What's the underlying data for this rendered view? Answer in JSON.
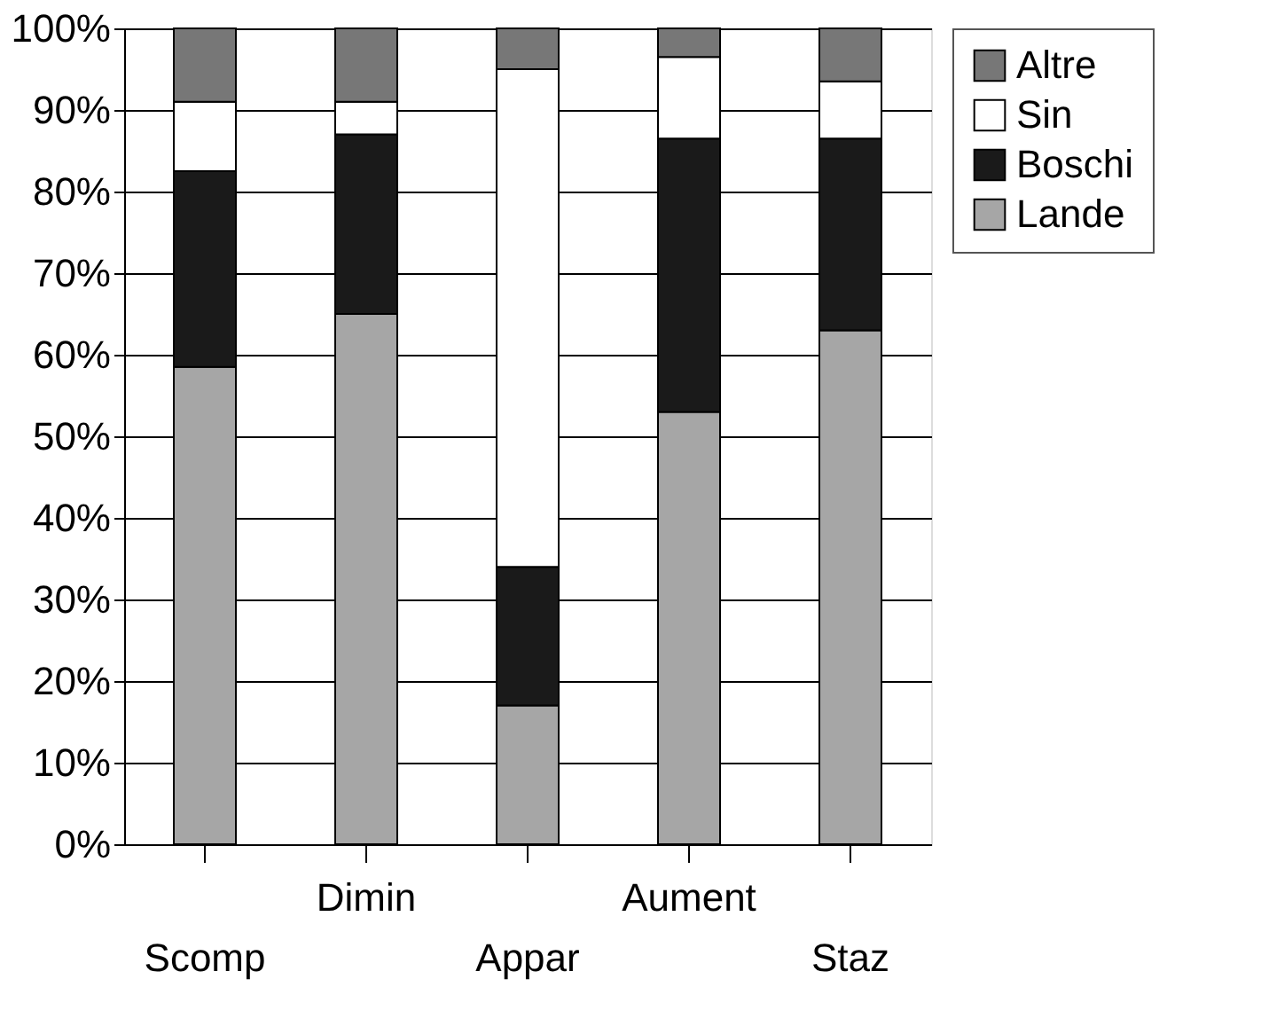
{
  "chart_data": {
    "type": "bar",
    "stacked": true,
    "categories": [
      "Scomp",
      "Dimin",
      "Appar",
      "Aument",
      "Staz"
    ],
    "series": [
      {
        "name": "Lande",
        "color": "#a6a6a6",
        "values": [
          58.5,
          65,
          17,
          53,
          63
        ]
      },
      {
        "name": "Boschi",
        "color": "#1a1a1a",
        "values": [
          24,
          22,
          17,
          33.5,
          23.5
        ]
      },
      {
        "name": "Sin",
        "color": "#ffffff",
        "values": [
          8.5,
          4,
          61,
          10,
          7
        ]
      },
      {
        "name": "Altre",
        "color": "#777777",
        "values": [
          9,
          9,
          5,
          3.5,
          6.5
        ]
      }
    ],
    "ylim": [
      0,
      100
    ],
    "yticks": [
      {
        "value": 0,
        "label": "0%"
      },
      {
        "value": 10,
        "label": "10%"
      },
      {
        "value": 20,
        "label": "20%"
      },
      {
        "value": 30,
        "label": "30%"
      },
      {
        "value": 40,
        "label": "40%"
      },
      {
        "value": 50,
        "label": "50%"
      },
      {
        "value": 60,
        "label": "60%"
      },
      {
        "value": 70,
        "label": "70%"
      },
      {
        "value": 80,
        "label": "80%"
      },
      {
        "value": 90,
        "label": "90%"
      },
      {
        "value": 100,
        "label": "100%"
      }
    ],
    "grid": "y",
    "legend": "right"
  }
}
